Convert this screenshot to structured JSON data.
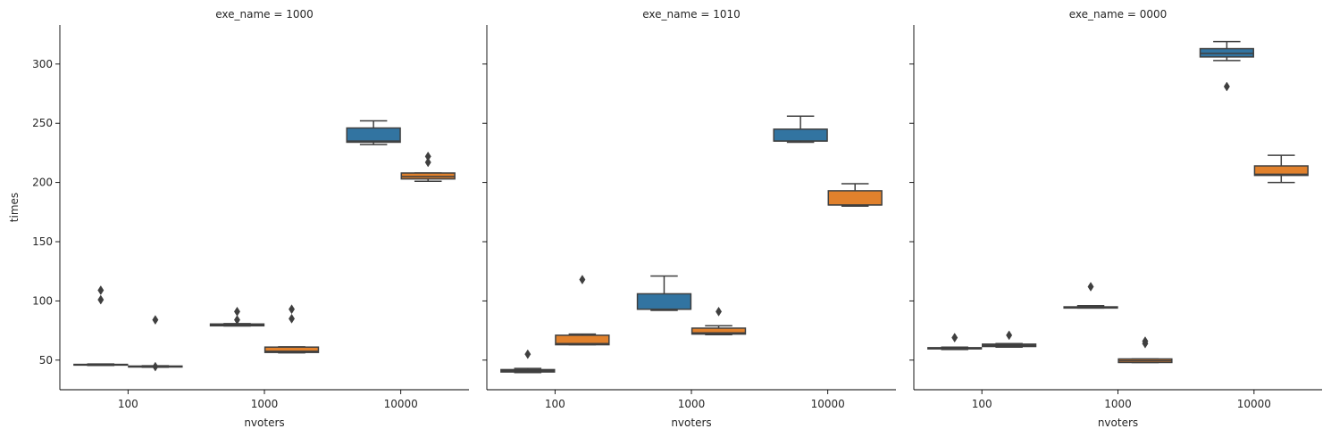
{
  "chart_data": {
    "type": "box",
    "categories": [
      "100",
      "1000",
      "10000"
    ],
    "xlabel": "nvoters",
    "ylabel": "times",
    "ylim": [
      25,
      333
    ],
    "yticks": [
      50,
      100,
      150,
      200,
      250,
      300
    ],
    "hue_colors": [
      "#3274a1",
      "#e1812c"
    ],
    "panels": [
      {
        "title": "exe_name = 1000",
        "boxes": [
          {
            "category": "100",
            "hue": 0,
            "q1": 45.8,
            "median": 46.1,
            "q3": 46.4,
            "whislo": 45.5,
            "whishi": 46.7,
            "fliers": [
              101,
              109
            ]
          },
          {
            "category": "100",
            "hue": 1,
            "q1": 44.2,
            "median": 44.6,
            "q3": 45.0,
            "whislo": 44.0,
            "whishi": 45.2,
            "fliers": [
              44.5,
              84
            ]
          },
          {
            "category": "1000",
            "hue": 0,
            "q1": 79.0,
            "median": 79.8,
            "q3": 80.5,
            "whislo": 78.8,
            "whishi": 80.8,
            "fliers": [
              84,
              91
            ]
          },
          {
            "category": "1000",
            "hue": 1,
            "q1": 56.5,
            "median": 57.5,
            "q3": 61.0,
            "whislo": 56.2,
            "whishi": 61.2,
            "fliers": [
              85,
              93
            ]
          },
          {
            "category": "10000",
            "hue": 0,
            "q1": 234,
            "median": 235,
            "q3": 246,
            "whislo": 232,
            "whishi": 252,
            "fliers": []
          },
          {
            "category": "10000",
            "hue": 1,
            "q1": 203,
            "median": 205,
            "q3": 208,
            "whislo": 201,
            "whishi": 208,
            "fliers": [
              217,
              222
            ]
          }
        ]
      },
      {
        "title": "exe_name = 1010",
        "boxes": [
          {
            "category": "100",
            "hue": 0,
            "q1": 40,
            "median": 41,
            "q3": 42,
            "whislo": 39.5,
            "whishi": 43,
            "fliers": [
              55
            ]
          },
          {
            "category": "100",
            "hue": 1,
            "q1": 63,
            "median": 64,
            "q3": 71,
            "whislo": 63,
            "whishi": 72,
            "fliers": [
              118
            ]
          },
          {
            "category": "1000",
            "hue": 0,
            "q1": 93,
            "median": 93,
            "q3": 106,
            "whislo": 92,
            "whishi": 121,
            "fliers": []
          },
          {
            "category": "1000",
            "hue": 1,
            "q1": 72,
            "median": 73,
            "q3": 77,
            "whislo": 71.5,
            "whishi": 79,
            "fliers": [
              91
            ]
          },
          {
            "category": "10000",
            "hue": 0,
            "q1": 235,
            "median": 235,
            "q3": 245,
            "whislo": 234,
            "whishi": 256,
            "fliers": []
          },
          {
            "category": "10000",
            "hue": 1,
            "q1": 181,
            "median": 181,
            "q3": 193,
            "whislo": 180,
            "whishi": 199,
            "fliers": []
          }
        ]
      },
      {
        "title": "exe_name = 0000",
        "boxes": [
          {
            "category": "100",
            "hue": 0,
            "q1": 59.5,
            "median": 60,
            "q3": 60.5,
            "whislo": 59,
            "whishi": 61,
            "fliers": [
              69
            ]
          },
          {
            "category": "100",
            "hue": 1,
            "q1": 61.5,
            "median": 62.5,
            "q3": 63.5,
            "whislo": 61,
            "whishi": 64,
            "fliers": [
              71
            ]
          },
          {
            "category": "1000",
            "hue": 0,
            "q1": 94,
            "median": 94.5,
            "q3": 95,
            "whislo": 94,
            "whishi": 96,
            "fliers": [
              112
            ]
          },
          {
            "category": "1000",
            "hue": 1,
            "q1": 48,
            "median": 49.5,
            "q3": 51,
            "whislo": 48,
            "whishi": 51,
            "fliers": [
              64,
              66
            ]
          },
          {
            "category": "10000",
            "hue": 0,
            "q1": 306,
            "median": 309,
            "q3": 313,
            "whislo": 303,
            "whishi": 319,
            "fliers": [
              281
            ]
          },
          {
            "category": "10000",
            "hue": 1,
            "q1": 206,
            "median": 207,
            "q3": 214,
            "whislo": 200,
            "whishi": 223,
            "fliers": []
          }
        ]
      }
    ]
  }
}
